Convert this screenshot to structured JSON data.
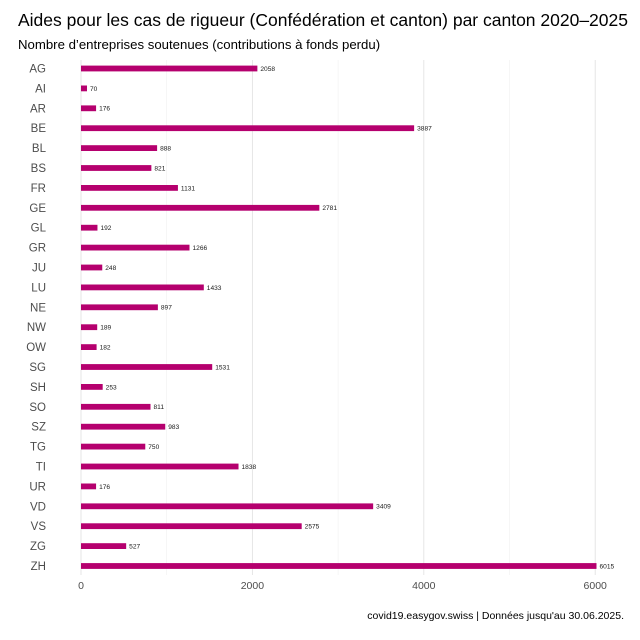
{
  "chart_data": {
    "type": "bar",
    "orientation": "horizontal",
    "title": "Aides pour les cas de rigueur (Confédération et canton) par canton 2020–2025",
    "subtitle": "Nombre d’entreprises soutenues (contributions à fonds perdu)",
    "caption": "covid19.easygov.swiss | Données jusqu'au 30.06.2025.",
    "categories": [
      "AG",
      "AI",
      "AR",
      "BE",
      "BL",
      "BS",
      "FR",
      "GE",
      "GL",
      "GR",
      "JU",
      "LU",
      "NE",
      "NW",
      "OW",
      "SG",
      "SH",
      "SO",
      "SZ",
      "TG",
      "TI",
      "UR",
      "VD",
      "VS",
      "ZG",
      "ZH"
    ],
    "values": [
      2058,
      70,
      176,
      3887,
      888,
      821,
      1131,
      2781,
      192,
      1266,
      248,
      1433,
      897,
      189,
      182,
      1531,
      253,
      811,
      983,
      750,
      1838,
      176,
      3409,
      2575,
      527,
      6015
    ],
    "x_ticks": [
      0,
      2000,
      4000,
      6000
    ],
    "xlim": [
      0,
      6015
    ],
    "bar_color": "#b5006e",
    "grid": "vertical major and minor gridlines",
    "legend": "none"
  }
}
